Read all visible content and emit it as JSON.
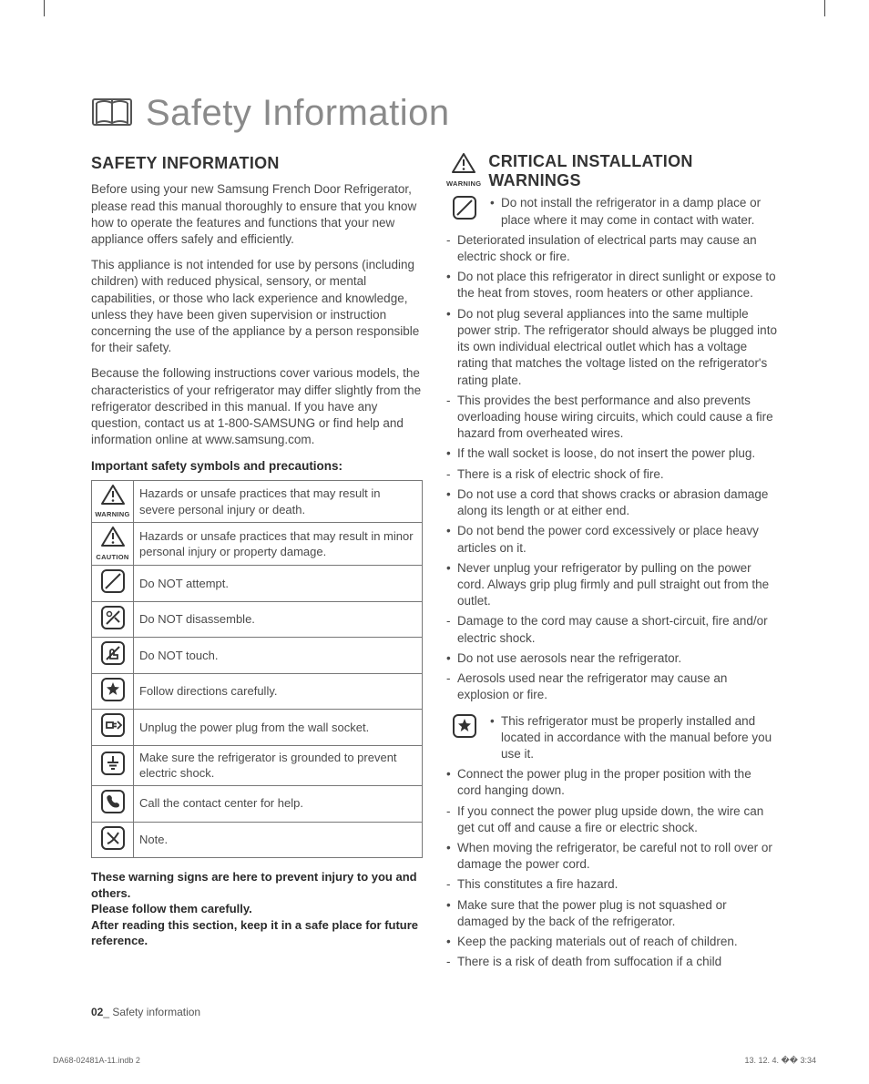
{
  "page": {
    "title": "Safety Information",
    "footer_page": "02",
    "footer_text": "Safety information",
    "meta_left": "DA68-02481A-11.indb   2",
    "meta_right": "13. 12. 4.   �� 3:34"
  },
  "left": {
    "heading": "SAFETY INFORMATION",
    "p1": "Before using your new Samsung French Door Refrigerator, please read this manual thoroughly to ensure that you know how to operate the features and functions that your new appliance offers safely and efficiently.",
    "p2": "This appliance is not intended for use by persons (including children) with reduced physical, sensory, or mental capabilities, or those who lack experience and knowledge, unless they have been given supervision or instruction concerning the use of the appliance by a person responsible for their safety.",
    "p3": "Because the following instructions cover various models, the characteristics of your refrigerator may differ slightly from the refrigerator described in this manual. If you have any question, contact us at 1-800-SAMSUNG or find help and information online at www.samsung.com.",
    "sub_head": "Important safety symbols and precautions:",
    "rows": [
      {
        "icon": "warning-tri",
        "label": "WARNING",
        "text": "Hazards or unsafe practices that may result in severe personal injury or death."
      },
      {
        "icon": "caution-tri",
        "label": "CAUTION",
        "text": "Hazards or unsafe practices that may result in minor personal injury or property damage."
      },
      {
        "icon": "no-slash",
        "label": "",
        "text": "Do NOT attempt."
      },
      {
        "icon": "no-disassemble",
        "label": "",
        "text": "Do NOT disassemble."
      },
      {
        "icon": "no-touch",
        "label": "",
        "text": "Do NOT touch."
      },
      {
        "icon": "star-box",
        "label": "",
        "text": "Follow directions carefully."
      },
      {
        "icon": "unplug",
        "label": "",
        "text": "Unplug the power plug from the wall socket."
      },
      {
        "icon": "ground",
        "label": "",
        "text": "Make sure the refrigerator is grounded to prevent electric shock."
      },
      {
        "icon": "phone",
        "label": "",
        "text": "Call the contact center for help."
      },
      {
        "icon": "note",
        "label": "",
        "text": "Note."
      }
    ],
    "warn1": "These warning signs are here to prevent injury to you and others.",
    "warn2": "Please follow them carefully.",
    "warn3": "After reading this section, keep it in a safe place for future reference."
  },
  "right": {
    "heading": "CRITICAL INSTALLATION WARNINGS",
    "head_label": "WARNING",
    "groups": [
      {
        "icon": "no-slash",
        "items": [
          {
            "t": "b",
            "text": "Do not install the refrigerator in a damp place or place where it may come in contact with water."
          },
          {
            "t": "d",
            "text": "Deteriorated insulation of electrical parts may cause an electric shock or fire."
          },
          {
            "t": "b",
            "text": "Do not place this refrigerator in direct sunlight or expose to the heat from stoves, room heaters or other appliance."
          },
          {
            "t": "b",
            "text": "Do not plug several appliances into the same multiple power strip. The refrigerator should always be plugged into its own individual electrical outlet which has a voltage rating that matches the voltage listed on the refrigerator's rating plate."
          },
          {
            "t": "d",
            "text": "This provides the best performance and also prevents overloading house wiring circuits, which could cause a fire hazard from overheated wires."
          },
          {
            "t": "b",
            "text": "If the wall socket is loose, do not insert the power plug."
          },
          {
            "t": "d",
            "text": "There is a risk of electric shock of fire."
          },
          {
            "t": "b",
            "text": "Do not use a cord that shows cracks or abrasion damage along its length or at either end."
          },
          {
            "t": "b",
            "text": "Do not bend the power cord excessively or place heavy articles on it."
          },
          {
            "t": "b",
            "text": "Never unplug your refrigerator by pulling on the power cord. Always grip plug firmly and pull straight out from the outlet."
          },
          {
            "t": "d",
            "text": "Damage to the cord may cause a short-circuit, fire and/or electric shock."
          },
          {
            "t": "b",
            "text": "Do not use aerosols near the refrigerator."
          },
          {
            "t": "d",
            "text": "Aerosols used near the refrigerator may cause an explosion or fire."
          }
        ]
      },
      {
        "icon": "star-box",
        "items": [
          {
            "t": "b",
            "text": "This refrigerator must be properly installed and located in accordance with the manual before you use it."
          },
          {
            "t": "b",
            "text": "Connect the power plug in the proper position with the cord hanging down."
          },
          {
            "t": "d",
            "text": "If you connect the power plug upside down, the wire can get cut off and cause a fire or electric shock."
          },
          {
            "t": "b",
            "text": "When moving the refrigerator, be careful not to roll over or damage the power cord."
          },
          {
            "t": "d",
            "text": "This constitutes a fire hazard."
          },
          {
            "t": "b",
            "text": "Make sure that the power plug is not squashed or damaged by the back of the refrigerator."
          },
          {
            "t": "b",
            "text": "Keep the packing materials out of reach of children."
          },
          {
            "t": "d",
            "text": "There is a risk of death from suffocation if a child"
          }
        ]
      }
    ]
  },
  "colors": {
    "text": "#4a4a4a",
    "heading": "#333333",
    "icon_stroke": "#333333",
    "border": "#777777"
  }
}
